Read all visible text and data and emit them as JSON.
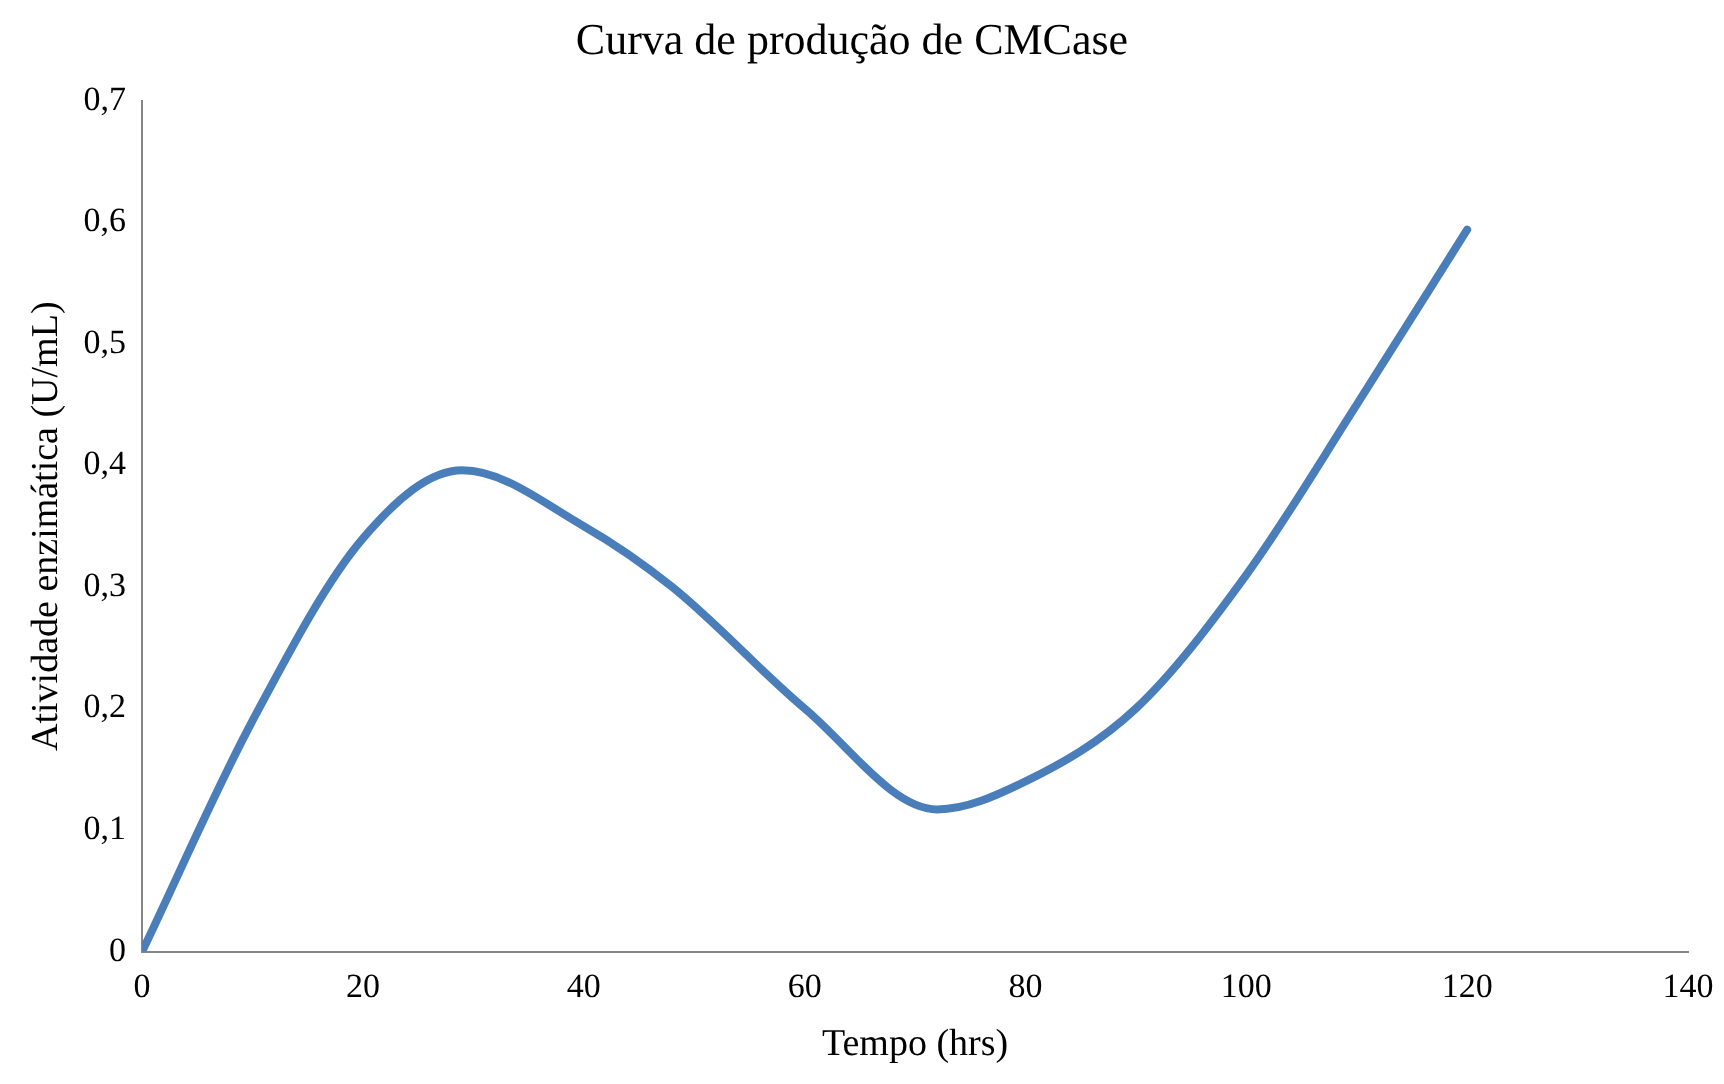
{
  "chart_data": {
    "type": "line",
    "title": "Curva de produção de CMCase",
    "xlabel": "Tempo (hrs)",
    "ylabel": "Atividade enzimática (U/mL)",
    "x": [
      0,
      10,
      20,
      29,
      40,
      48,
      60,
      72,
      80,
      90,
      100,
      110,
      120
    ],
    "series": [
      {
        "color": "#4a7ebb",
        "values": [
          0,
          0.19,
          0.34,
          0.396,
          0.35,
          0.3,
          0.2,
          0.117,
          0.14,
          0.2,
          0.31,
          0.45,
          0.594
        ]
      }
    ],
    "xlim": [
      0,
      140
    ],
    "xticks": [
      0,
      20,
      40,
      60,
      80,
      100,
      120,
      140
    ],
    "ylim": [
      0,
      0.7
    ],
    "yticks": [
      0,
      {
        "value": 0.1,
        "label": "0,1"
      },
      {
        "value": 0.2,
        "label": "0,2"
      },
      {
        "value": 0.3,
        "label": "0,3"
      },
      {
        "value": 0.4,
        "label": "0,4"
      },
      {
        "value": 0.5,
        "label": "0,5"
      },
      {
        "value": 0.6,
        "label": "0,6"
      },
      {
        "value": 0.7,
        "label": "0,7"
      }
    ],
    "grid": false,
    "legend": false,
    "marker": "none",
    "line_style": "solid"
  }
}
